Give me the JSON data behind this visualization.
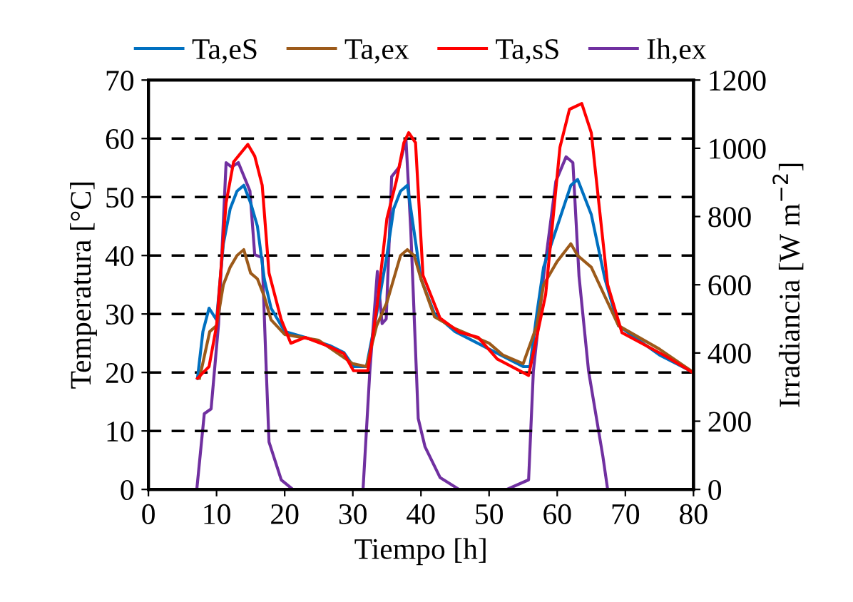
{
  "chart_data": {
    "type": "line",
    "xlabel": "Tiempo [h]",
    "ylabel": "Temperatura [°C]",
    "y2label": "Irradiancia [W m$^{−2}$]",
    "xlim": [
      0,
      80
    ],
    "xticks": [
      0,
      10,
      20,
      30,
      40,
      50,
      60,
      70,
      80
    ],
    "ylim": [
      0,
      70
    ],
    "yticks": [
      0,
      10,
      20,
      30,
      40,
      50,
      60,
      70
    ],
    "y2lim": [
      0,
      1200
    ],
    "y2ticks": [
      0,
      200,
      400,
      600,
      800,
      1000,
      1200
    ],
    "grid": "y",
    "legend": "top",
    "marker": "none",
    "line_style": "solid",
    "series": [
      {
        "name": "Ta,eS",
        "color": "#0070c0",
        "x": [
          7.2,
          8,
          8.9,
          10,
          11,
          12,
          13,
          14,
          15,
          16,
          17,
          18,
          20,
          23,
          26.6,
          28.7,
          30.1,
          31,
          32,
          33.5,
          35,
          36,
          37,
          38,
          39,
          40,
          42,
          45,
          50,
          55,
          56,
          57,
          58,
          60,
          62,
          63,
          65,
          67,
          69,
          75,
          80
        ],
        "values": [
          19,
          27,
          31,
          29,
          42,
          48,
          51,
          52,
          49,
          45,
          36,
          31,
          27,
          26,
          24.6,
          23.4,
          21,
          21,
          21,
          30,
          40,
          48,
          51,
          52,
          44,
          36,
          30,
          27,
          24,
          21,
          21,
          30,
          38,
          45,
          52,
          53,
          47,
          36,
          28,
          23,
          20
        ]
      },
      {
        "name": "Ta,ex",
        "color": "#9c5a1a",
        "x": [
          7.5,
          9,
          10,
          11,
          12,
          13,
          14,
          15,
          16,
          17,
          18,
          20,
          25,
          30,
          32,
          33.5,
          35,
          36,
          37,
          38,
          39,
          40,
          42,
          45,
          50,
          52,
          55,
          57,
          58,
          60,
          62,
          63,
          65,
          67,
          69,
          75,
          80
        ],
        "values": [
          19,
          27,
          28,
          35,
          38,
          40,
          41,
          37,
          36,
          33,
          29,
          26.5,
          25.5,
          21.5,
          21,
          28,
          32,
          36,
          40,
          41,
          40,
          36,
          29.5,
          27.5,
          25,
          23,
          21.5,
          28,
          35,
          39,
          42,
          40,
          38,
          33,
          28,
          24,
          20
        ]
      },
      {
        "name": "Ta,sS",
        "color": "#ff0000",
        "x": [
          7.2,
          8.9,
          10,
          11.4,
          12.5,
          14.6,
          15.6,
          16.7,
          17.7,
          19.5,
          20.9,
          23,
          26.6,
          28.7,
          30.1,
          32.2,
          33.6,
          35,
          36.4,
          37.5,
          38.2,
          39.2,
          40.3,
          42.8,
          45.6,
          48.4,
          51.2,
          55.8,
          58.3,
          60.4,
          61.8,
          63.6,
          65,
          67.4,
          69.5,
          75.9,
          80
        ],
        "values": [
          19,
          21,
          28,
          49,
          56,
          59,
          57,
          52,
          37,
          29,
          25,
          26,
          24.4,
          23.2,
          20.3,
          20.3,
          31.7,
          46.3,
          52.8,
          59.3,
          61,
          59.3,
          36.6,
          29.3,
          26.9,
          26,
          22.3,
          19.5,
          33.3,
          58.5,
          65,
          66,
          61,
          35,
          26.8,
          22.8,
          19.9
        ]
      },
      {
        "name": "Ih,ex",
        "color": "#7030a0",
        "axis": "y2",
        "x": [
          7.1,
          8.2,
          9.2,
          10.3,
          11.4,
          12.2,
          13.2,
          14.9,
          15.6,
          16.7,
          17.3,
          17.7,
          19.5,
          21.2,
          31.5,
          32.5,
          33.6,
          34.3,
          34.9,
          35.7,
          36.8,
          37.8,
          38.5,
          39.6,
          40.6,
          42.8,
          45.6,
          52.6,
          55.8,
          56.5,
          58,
          59.8,
          61.3,
          62.3,
          63.2,
          64.6,
          66.7,
          67.4
        ],
        "values": [
          0,
          222,
          236,
          486,
          958,
          945,
          958,
          875,
          688,
          680,
          347,
          139,
          28,
          0,
          0,
          347,
          639,
          486,
          500,
          917,
          945,
          1027,
          764,
          208,
          125,
          35,
          0,
          0,
          28,
          347,
          625,
          903,
          975,
          958,
          625,
          347,
          97,
          0
        ]
      }
    ]
  }
}
